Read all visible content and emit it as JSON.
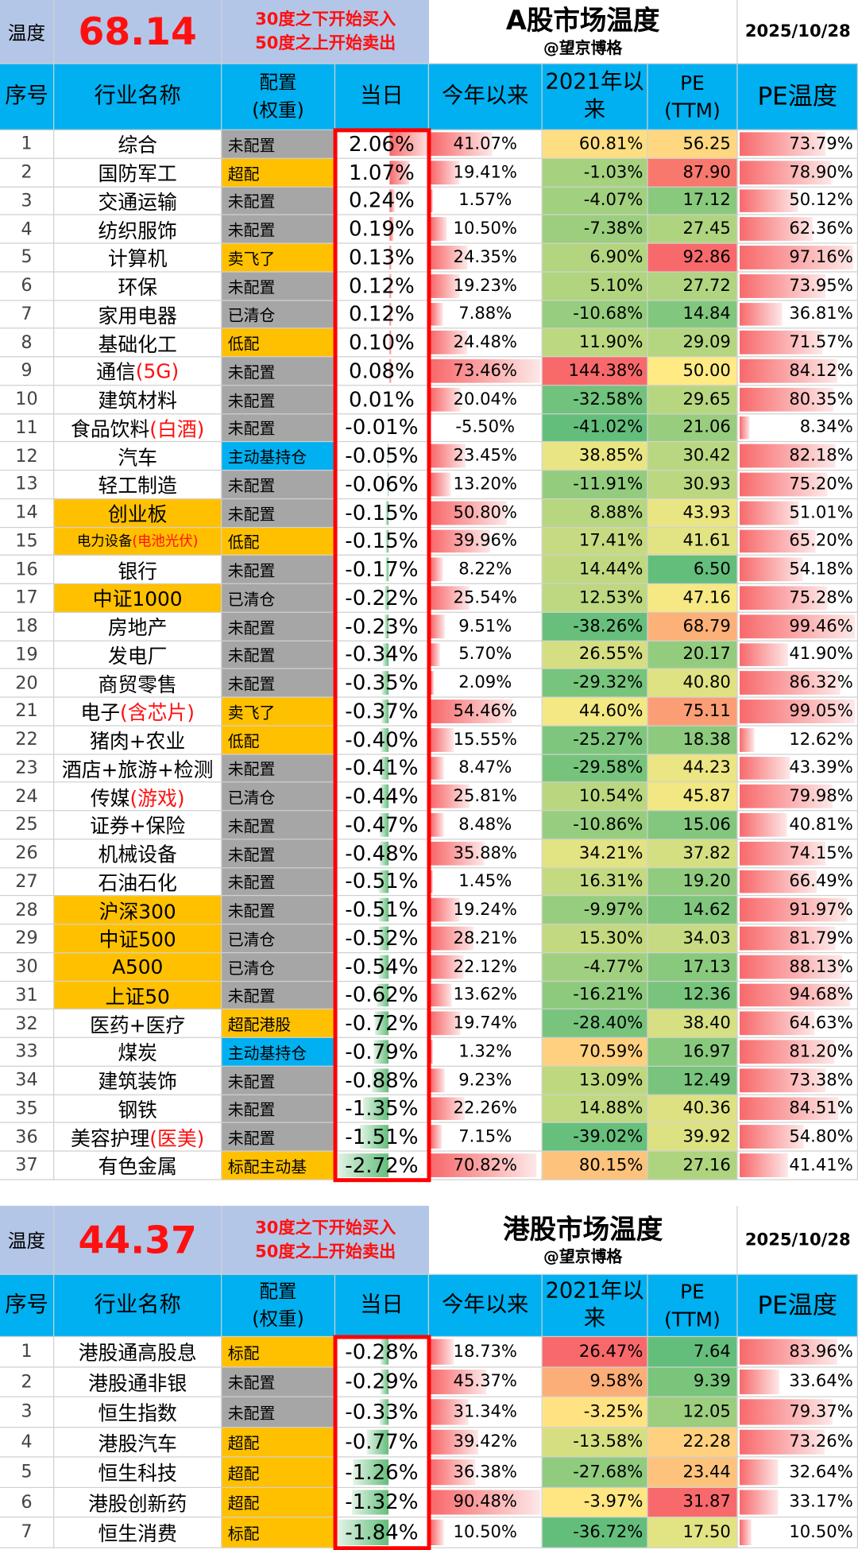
{
  "palette": {
    "gray": "#a6a6a6",
    "orange": "#ffc000",
    "blue": "#00b0f0"
  },
  "a_share": {
    "header": {
      "label": "温度",
      "temp": "68.14",
      "note1": "30度之下开始买入",
      "note2": "50度之上开始卖出",
      "title": "A股市场温度",
      "subtitle": "@望京博格",
      "date": "2025/10/28"
    },
    "columns": [
      [
        "序号"
      ],
      [
        "行业名称"
      ],
      [
        "配置",
        "(权重)"
      ],
      [
        "当日"
      ],
      [
        "今年以来"
      ],
      [
        "2021年以",
        "来"
      ],
      [
        "PE",
        "(TTM)"
      ],
      [
        "PE温度"
      ]
    ],
    "rows": [
      {
        "no": "1",
        "name": "综合",
        "alloc": "未配置",
        "alloc_color": "gray",
        "day": "2.06%",
        "ytd": "41.07%",
        "since2021": "60.81%",
        "pe": "56.25",
        "pe_temp": "73.79%"
      },
      {
        "no": "2",
        "name": "国防军工",
        "alloc": "超配",
        "alloc_color": "orange",
        "day": "1.07%",
        "ytd": "19.41%",
        "since2021": "-1.03%",
        "pe": "87.90",
        "pe_temp": "78.90%"
      },
      {
        "no": "3",
        "name": "交通运输",
        "alloc": "未配置",
        "alloc_color": "gray",
        "day": "0.24%",
        "ytd": "1.57%",
        "since2021": "-4.07%",
        "pe": "17.12",
        "pe_temp": "50.12%"
      },
      {
        "no": "4",
        "name": "纺织服饰",
        "alloc": "未配置",
        "alloc_color": "gray",
        "day": "0.19%",
        "ytd": "10.50%",
        "since2021": "-7.38%",
        "pe": "27.45",
        "pe_temp": "62.36%"
      },
      {
        "no": "5",
        "name": "计算机",
        "alloc": "卖飞了",
        "alloc_color": "orange",
        "day": "0.13%",
        "ytd": "24.35%",
        "since2021": "6.90%",
        "pe": "92.86",
        "pe_temp": "97.16%"
      },
      {
        "no": "6",
        "name": "环保",
        "alloc": "未配置",
        "alloc_color": "gray",
        "day": "0.12%",
        "ytd": "19.23%",
        "since2021": "5.10%",
        "pe": "27.72",
        "pe_temp": "73.95%"
      },
      {
        "no": "7",
        "name": "家用电器",
        "alloc": "已清仓",
        "alloc_color": "gray",
        "day": "0.12%",
        "ytd": "7.88%",
        "since2021": "-10.68%",
        "pe": "14.84",
        "pe_temp": "36.81%"
      },
      {
        "no": "8",
        "name": "基础化工",
        "alloc": "低配",
        "alloc_color": "orange",
        "day": "0.10%",
        "ytd": "24.48%",
        "since2021": "11.90%",
        "pe": "29.09",
        "pe_temp": "71.57%"
      },
      {
        "no": "9",
        "name": "通信",
        "note": "(5G)",
        "alloc": "未配置",
        "alloc_color": "gray",
        "day": "0.08%",
        "ytd": "73.46%",
        "since2021": "144.38%",
        "pe": "50.00",
        "pe_temp": "84.12%"
      },
      {
        "no": "10",
        "name": "建筑材料",
        "alloc": "未配置",
        "alloc_color": "gray",
        "day": "0.01%",
        "ytd": "20.04%",
        "since2021": "-32.58%",
        "pe": "29.65",
        "pe_temp": "80.35%"
      },
      {
        "no": "11",
        "name": "食品饮料",
        "note": "(白酒)",
        "alloc": "未配置",
        "alloc_color": "gray",
        "day": "-0.01%",
        "ytd": "-5.50%",
        "since2021": "-41.02%",
        "pe": "21.06",
        "pe_temp": "8.34%"
      },
      {
        "no": "12",
        "name": "汽车",
        "alloc": "主动基持仓",
        "alloc_color": "blue",
        "day": "-0.05%",
        "ytd": "23.45%",
        "since2021": "38.85%",
        "pe": "30.42",
        "pe_temp": "82.18%"
      },
      {
        "no": "13",
        "name": "轻工制造",
        "alloc": "未配置",
        "alloc_color": "gray",
        "day": "-0.06%",
        "ytd": "13.20%",
        "since2021": "-11.91%",
        "pe": "30.93",
        "pe_temp": "75.20%"
      },
      {
        "no": "14",
        "name": "创业板",
        "hl": true,
        "alloc": "未配置",
        "alloc_color": "gray",
        "day": "-0.15%",
        "ytd": "50.80%",
        "since2021": "8.88%",
        "pe": "43.93",
        "pe_temp": "51.01%"
      },
      {
        "no": "15",
        "name": "电力设备",
        "note": "(电池光伏)",
        "hl": true,
        "small": true,
        "alloc": "低配",
        "alloc_color": "orange",
        "day": "-0.15%",
        "ytd": "39.96%",
        "since2021": "17.41%",
        "pe": "41.61",
        "pe_temp": "65.20%"
      },
      {
        "no": "16",
        "name": "银行",
        "alloc": "未配置",
        "alloc_color": "gray",
        "day": "-0.17%",
        "ytd": "8.22%",
        "since2021": "14.44%",
        "pe": "6.50",
        "pe_temp": "54.18%"
      },
      {
        "no": "17",
        "name": "中证1000",
        "hl": true,
        "alloc": "已清仓",
        "alloc_color": "gray",
        "day": "-0.22%",
        "ytd": "25.54%",
        "since2021": "12.53%",
        "pe": "47.16",
        "pe_temp": "75.28%"
      },
      {
        "no": "18",
        "name": "房地产",
        "alloc": "未配置",
        "alloc_color": "gray",
        "day": "-0.23%",
        "ytd": "9.51%",
        "since2021": "-38.26%",
        "pe": "68.79",
        "pe_temp": "99.46%"
      },
      {
        "no": "19",
        "name": "发电厂",
        "alloc": "未配置",
        "alloc_color": "gray",
        "day": "-0.34%",
        "ytd": "5.70%",
        "since2021": "26.55%",
        "pe": "20.17",
        "pe_temp": "41.90%"
      },
      {
        "no": "20",
        "name": "商贸零售",
        "alloc": "未配置",
        "alloc_color": "gray",
        "day": "-0.35%",
        "ytd": "2.09%",
        "since2021": "-29.32%",
        "pe": "40.80",
        "pe_temp": "86.32%"
      },
      {
        "no": "21",
        "name": "电子",
        "note": "(含芯片)",
        "alloc": "卖飞了",
        "alloc_color": "orange",
        "day": "-0.37%",
        "ytd": "54.46%",
        "since2021": "44.60%",
        "pe": "75.11",
        "pe_temp": "99.05%"
      },
      {
        "no": "22",
        "name": "猪肉+农业",
        "alloc": "低配",
        "alloc_color": "orange",
        "day": "-0.40%",
        "ytd": "15.55%",
        "since2021": "-25.27%",
        "pe": "18.38",
        "pe_temp": "12.62%"
      },
      {
        "no": "23",
        "name": "酒店+旅游+检测",
        "alloc": "未配置",
        "alloc_color": "gray",
        "day": "-0.41%",
        "ytd": "8.47%",
        "since2021": "-29.58%",
        "pe": "44.23",
        "pe_temp": "43.39%"
      },
      {
        "no": "24",
        "name": "传媒",
        "note": "(游戏)",
        "alloc": "已清仓",
        "alloc_color": "gray",
        "day": "-0.44%",
        "ytd": "25.81%",
        "since2021": "10.54%",
        "pe": "45.87",
        "pe_temp": "79.98%"
      },
      {
        "no": "25",
        "name": "证券+保险",
        "alloc": "未配置",
        "alloc_color": "gray",
        "day": "-0.47%",
        "ytd": "8.48%",
        "since2021": "-10.86%",
        "pe": "15.06",
        "pe_temp": "40.81%"
      },
      {
        "no": "26",
        "name": "机械设备",
        "alloc": "未配置",
        "alloc_color": "gray",
        "day": "-0.48%",
        "ytd": "35.88%",
        "since2021": "34.21%",
        "pe": "37.82",
        "pe_temp": "74.15%"
      },
      {
        "no": "27",
        "name": "石油石化",
        "alloc": "未配置",
        "alloc_color": "gray",
        "day": "-0.51%",
        "ytd": "1.45%",
        "since2021": "16.31%",
        "pe": "19.20",
        "pe_temp": "66.49%"
      },
      {
        "no": "28",
        "name": "沪深300",
        "hl": true,
        "alloc": "未配置",
        "alloc_color": "gray",
        "day": "-0.51%",
        "ytd": "19.24%",
        "since2021": "-9.97%",
        "pe": "14.62",
        "pe_temp": "91.97%"
      },
      {
        "no": "29",
        "name": "中证500",
        "hl": true,
        "alloc": "已清仓",
        "alloc_color": "gray",
        "day": "-0.52%",
        "ytd": "28.21%",
        "since2021": "15.30%",
        "pe": "34.03",
        "pe_temp": "81.79%"
      },
      {
        "no": "30",
        "name": "A500",
        "hl": true,
        "alloc": "已清仓",
        "alloc_color": "gray",
        "day": "-0.54%",
        "ytd": "22.12%",
        "since2021": "-4.77%",
        "pe": "17.13",
        "pe_temp": "88.13%"
      },
      {
        "no": "31",
        "name": "上证50",
        "hl": true,
        "alloc": "未配置",
        "alloc_color": "gray",
        "day": "-0.62%",
        "ytd": "13.62%",
        "since2021": "-16.21%",
        "pe": "12.36",
        "pe_temp": "94.68%"
      },
      {
        "no": "32",
        "name": "医药+医疗",
        "alloc": "超配港股",
        "alloc_color": "orange",
        "day": "-0.72%",
        "ytd": "19.74%",
        "since2021": "-28.40%",
        "pe": "38.40",
        "pe_temp": "64.63%"
      },
      {
        "no": "33",
        "name": "煤炭",
        "alloc": "主动基持仓",
        "alloc_color": "blue",
        "day": "-0.79%",
        "ytd": "1.32%",
        "since2021": "70.59%",
        "pe": "16.97",
        "pe_temp": "81.20%"
      },
      {
        "no": "34",
        "name": "建筑装饰",
        "alloc": "未配置",
        "alloc_color": "gray",
        "day": "-0.88%",
        "ytd": "9.23%",
        "since2021": "13.09%",
        "pe": "12.49",
        "pe_temp": "73.38%"
      },
      {
        "no": "35",
        "name": "钢铁",
        "alloc": "未配置",
        "alloc_color": "gray",
        "day": "-1.35%",
        "ytd": "22.26%",
        "since2021": "14.88%",
        "pe": "40.36",
        "pe_temp": "84.51%"
      },
      {
        "no": "36",
        "name": "美容护理",
        "note": "(医美)",
        "alloc": "未配置",
        "alloc_color": "gray",
        "day": "-1.51%",
        "ytd": "7.15%",
        "since2021": "-39.02%",
        "pe": "39.92",
        "pe_temp": "54.80%"
      },
      {
        "no": "37",
        "name": "有色金属",
        "alloc": "标配主动基",
        "alloc_color": "orange",
        "day": "-2.72%",
        "ytd": "70.82%",
        "since2021": "80.15%",
        "pe": "27.16",
        "pe_temp": "41.41%"
      }
    ]
  },
  "hk": {
    "header": {
      "label": "温度",
      "temp": "44.37",
      "note1": "30度之下开始买入",
      "note2": "50度之上开始卖出",
      "title": "港股市场温度",
      "subtitle": "@望京博格",
      "date": "2025/10/28"
    },
    "columns": [
      [
        "序号"
      ],
      [
        "行业名称"
      ],
      [
        "配置",
        "(权重)"
      ],
      [
        "当日"
      ],
      [
        "今年以来"
      ],
      [
        "2021年以",
        "来"
      ],
      [
        "PE",
        "(TTM)"
      ],
      [
        "PE温度"
      ]
    ],
    "rows": [
      {
        "no": "1",
        "name": "港股通高股息",
        "alloc": "标配",
        "alloc_color": "orange",
        "day": "-0.28%",
        "ytd": "18.73%",
        "since2021": "26.47%",
        "pe": "7.64",
        "pe_temp": "83.96%"
      },
      {
        "no": "2",
        "name": "港股通非银",
        "alloc": "未配置",
        "alloc_color": "gray",
        "day": "-0.29%",
        "ytd": "45.37%",
        "since2021": "9.58%",
        "pe": "9.39",
        "pe_temp": "33.64%"
      },
      {
        "no": "3",
        "name": "恒生指数",
        "alloc": "未配置",
        "alloc_color": "gray",
        "day": "-0.33%",
        "ytd": "31.34%",
        "since2021": "-3.25%",
        "pe": "12.05",
        "pe_temp": "79.37%"
      },
      {
        "no": "4",
        "name": "港股汽车",
        "alloc": "超配",
        "alloc_color": "orange",
        "day": "-0.77%",
        "ytd": "39.42%",
        "since2021": "-13.58%",
        "pe": "22.28",
        "pe_temp": "73.26%"
      },
      {
        "no": "5",
        "name": "恒生科技",
        "alloc": "超配",
        "alloc_color": "orange",
        "day": "-1.26%",
        "ytd": "36.38%",
        "since2021": "-27.68%",
        "pe": "23.44",
        "pe_temp": "32.64%"
      },
      {
        "no": "6",
        "name": "港股创新药",
        "alloc": "超配",
        "alloc_color": "orange",
        "day": "-1.32%",
        "ytd": "90.48%",
        "since2021": "-3.97%",
        "pe": "31.87",
        "pe_temp": "33.17%"
      },
      {
        "no": "7",
        "name": "恒生消费",
        "alloc": "标配",
        "alloc_color": "orange",
        "day": "-1.84%",
        "ytd": "10.50%",
        "since2021": "-36.72%",
        "pe": "17.50",
        "pe_temp": "10.50%"
      }
    ]
  }
}
